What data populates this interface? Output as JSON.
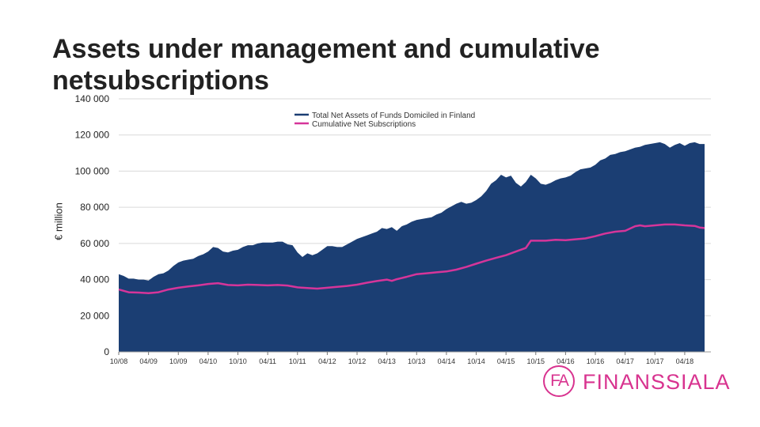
{
  "slide": {
    "title": "Assets under management and cumulative netsubscriptions"
  },
  "logo": {
    "mark": "FA",
    "name": "FINANSSIALA"
  },
  "colors": {
    "assets": "#1b3e73",
    "subscriptions": "#d6359a",
    "grid": "#d9d9d9",
    "brand": "#d8338f"
  },
  "chart_data": {
    "type": "area",
    "title": "Assets under management and cumulative netsubscriptions",
    "ylabel": "€ million",
    "xlabel": "",
    "ylim": [
      0,
      140000
    ],
    "yticks": [
      0,
      20000,
      40000,
      60000,
      80000,
      100000,
      120000,
      140000
    ],
    "ytick_labels": [
      "0",
      "20 000",
      "40 000",
      "60 000",
      "80 000",
      "100 000",
      "120 000",
      "140 000"
    ],
    "grid": true,
    "legend_position": "top-right",
    "x_tick_labels": [
      "10/08",
      "04/09",
      "10/09",
      "04/10",
      "10/10",
      "04/11",
      "10/11",
      "04/12",
      "10/12",
      "04/13",
      "10/13",
      "04/14",
      "10/14",
      "04/15",
      "10/15",
      "04/16",
      "10/16",
      "04/17",
      "10/17",
      "04/18"
    ],
    "x_range_months": [
      0,
      118
    ],
    "series": [
      {
        "name": "Total Net Assets of Funds Domiciled in Finland",
        "kind": "area",
        "points": [
          [
            0,
            43000
          ],
          [
            1,
            42000
          ],
          [
            2,
            40500
          ],
          [
            3,
            40500
          ],
          [
            4,
            40000
          ],
          [
            5,
            40000
          ],
          [
            6,
            39500
          ],
          [
            7,
            41500
          ],
          [
            8,
            43000
          ],
          [
            9,
            43500
          ],
          [
            10,
            45000
          ],
          [
            11,
            47500
          ],
          [
            12,
            49500
          ],
          [
            13,
            50500
          ],
          [
            14,
            51000
          ],
          [
            15,
            51500
          ],
          [
            16,
            53000
          ],
          [
            17,
            54000
          ],
          [
            18,
            55500
          ],
          [
            19,
            58000
          ],
          [
            20,
            57500
          ],
          [
            21,
            55500
          ],
          [
            22,
            55000
          ],
          [
            23,
            56000
          ],
          [
            24,
            56500
          ],
          [
            25,
            58000
          ],
          [
            26,
            59000
          ],
          [
            27,
            59000
          ],
          [
            28,
            60000
          ],
          [
            29,
            60500
          ],
          [
            30,
            60500
          ],
          [
            31,
            60500
          ],
          [
            32,
            61000
          ],
          [
            33,
            61000
          ],
          [
            34,
            59500
          ],
          [
            35,
            59000
          ],
          [
            36,
            55000
          ],
          [
            37,
            52500
          ],
          [
            38,
            54500
          ],
          [
            39,
            53500
          ],
          [
            40,
            54500
          ],
          [
            41,
            56500
          ],
          [
            42,
            58500
          ],
          [
            43,
            58500
          ],
          [
            44,
            58000
          ],
          [
            45,
            58000
          ],
          [
            46,
            59500
          ],
          [
            47,
            61000
          ],
          [
            48,
            62500
          ],
          [
            49,
            63500
          ],
          [
            50,
            64500
          ],
          [
            51,
            65500
          ],
          [
            52,
            66500
          ],
          [
            53,
            68500
          ],
          [
            54,
            68000
          ],
          [
            55,
            69000
          ],
          [
            56,
            67000
          ],
          [
            57,
            69500
          ],
          [
            58,
            70500
          ],
          [
            59,
            72000
          ],
          [
            60,
            73000
          ],
          [
            61,
            73500
          ],
          [
            62,
            74000
          ],
          [
            63,
            74500
          ],
          [
            64,
            76000
          ],
          [
            65,
            77000
          ],
          [
            66,
            79000
          ],
          [
            67,
            80500
          ],
          [
            68,
            82000
          ],
          [
            69,
            83000
          ],
          [
            70,
            82000
          ],
          [
            71,
            82500
          ],
          [
            72,
            84000
          ],
          [
            73,
            86000
          ],
          [
            74,
            89000
          ],
          [
            75,
            93000
          ],
          [
            76,
            95000
          ],
          [
            77,
            98000
          ],
          [
            78,
            96500
          ],
          [
            79,
            97500
          ],
          [
            80,
            93500
          ],
          [
            81,
            91500
          ],
          [
            82,
            94000
          ],
          [
            83,
            98000
          ],
          [
            84,
            96000
          ],
          [
            85,
            93000
          ],
          [
            86,
            92500
          ],
          [
            87,
            93500
          ],
          [
            88,
            95000
          ],
          [
            89,
            96000
          ],
          [
            90,
            96500
          ],
          [
            91,
            97500
          ],
          [
            92,
            99500
          ],
          [
            93,
            101000
          ],
          [
            94,
            101500
          ],
          [
            95,
            102000
          ],
          [
            96,
            103500
          ],
          [
            97,
            106000
          ],
          [
            98,
            107000
          ],
          [
            99,
            109000
          ],
          [
            100,
            109500
          ],
          [
            101,
            110500
          ],
          [
            102,
            111000
          ],
          [
            103,
            112000
          ],
          [
            104,
            113000
          ],
          [
            105,
            113500
          ],
          [
            106,
            114500
          ],
          [
            107,
            115000
          ],
          [
            108,
            115500
          ],
          [
            109,
            116000
          ],
          [
            110,
            115000
          ],
          [
            111,
            113000
          ],
          [
            112,
            114500
          ],
          [
            113,
            115500
          ],
          [
            114,
            114000
          ],
          [
            115,
            115500
          ],
          [
            116,
            116000
          ],
          [
            117,
            115000
          ],
          [
            118,
            115000
          ]
        ]
      },
      {
        "name": "Cumulative Net Subscriptions",
        "kind": "line",
        "points": [
          [
            0,
            34500
          ],
          [
            2,
            33000
          ],
          [
            4,
            32800
          ],
          [
            6,
            32500
          ],
          [
            8,
            33000
          ],
          [
            10,
            34500
          ],
          [
            12,
            35500
          ],
          [
            14,
            36200
          ],
          [
            16,
            36800
          ],
          [
            18,
            37600
          ],
          [
            20,
            38000
          ],
          [
            22,
            37000
          ],
          [
            24,
            36800
          ],
          [
            26,
            37200
          ],
          [
            28,
            37000
          ],
          [
            30,
            36800
          ],
          [
            32,
            37000
          ],
          [
            34,
            36700
          ],
          [
            36,
            35700
          ],
          [
            38,
            35300
          ],
          [
            40,
            35000
          ],
          [
            42,
            35500
          ],
          [
            44,
            36000
          ],
          [
            46,
            36500
          ],
          [
            48,
            37200
          ],
          [
            50,
            38300
          ],
          [
            52,
            39200
          ],
          [
            54,
            40000
          ],
          [
            55,
            39300
          ],
          [
            56,
            40200
          ],
          [
            58,
            41500
          ],
          [
            60,
            43000
          ],
          [
            62,
            43500
          ],
          [
            64,
            44000
          ],
          [
            66,
            44500
          ],
          [
            68,
            45500
          ],
          [
            70,
            47000
          ],
          [
            72,
            48800
          ],
          [
            74,
            50500
          ],
          [
            76,
            52000
          ],
          [
            78,
            53500
          ],
          [
            80,
            55500
          ],
          [
            82,
            57500
          ],
          [
            83,
            61500
          ],
          [
            84,
            61500
          ],
          [
            86,
            61500
          ],
          [
            88,
            62000
          ],
          [
            90,
            61800
          ],
          [
            92,
            62300
          ],
          [
            94,
            62800
          ],
          [
            96,
            64000
          ],
          [
            98,
            65500
          ],
          [
            100,
            66500
          ],
          [
            102,
            67000
          ],
          [
            104,
            69500
          ],
          [
            105,
            70000
          ],
          [
            106,
            69500
          ],
          [
            108,
            70000
          ],
          [
            110,
            70500
          ],
          [
            112,
            70500
          ],
          [
            114,
            70000
          ],
          [
            116,
            69700
          ],
          [
            117,
            68800
          ],
          [
            118,
            68500
          ]
        ]
      }
    ]
  }
}
